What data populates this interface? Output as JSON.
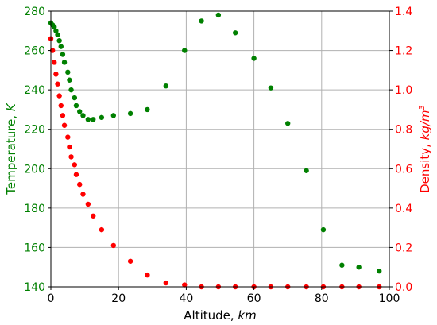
{
  "chart_data": {
    "type": "scatter",
    "xlabel": "Altitude, ",
    "xlabel_unit": "km",
    "ylabel_left": "Temperature, ",
    "ylabel_left_unit": "K",
    "ylabel_right": "Density, ",
    "ylabel_right_unit": "kg/m",
    "ylabel_right_unit_exp": "3",
    "xlim": [
      0,
      100
    ],
    "ylim_left": [
      140,
      280
    ],
    "ylim_right": [
      0,
      1.4
    ],
    "x_ticks": [
      0,
      20,
      40,
      60,
      80,
      100
    ],
    "y_left_ticks": [
      140,
      160,
      180,
      200,
      220,
      240,
      260,
      280
    ],
    "y_right_ticks": [
      "0.0",
      "0.2",
      "0.4",
      "0.6",
      "0.8",
      "1.0",
      "1.2",
      "1.4"
    ],
    "grid": true,
    "colors": {
      "left_axis": "#008000",
      "right_axis": "#ff0000"
    },
    "series": [
      {
        "axis": "left",
        "color": "#008000",
        "x": [
          0.0,
          0.5,
          1.0,
          1.5,
          2.0,
          2.5,
          3.0,
          3.5,
          4.0,
          5.0,
          5.5,
          6.0,
          7.0,
          7.5,
          8.5,
          9.5,
          11.0,
          12.5,
          15.0,
          18.5,
          23.5,
          28.5,
          34.0,
          39.5,
          44.5,
          49.5,
          54.5,
          60.0,
          65.0,
          70.0,
          75.5,
          80.5,
          86.0,
          91.0,
          97.0
        ],
        "y": [
          274,
          273,
          272,
          270,
          268,
          265,
          262,
          258,
          254,
          249,
          245,
          240,
          236,
          232,
          229,
          227,
          225,
          225,
          226,
          227,
          228,
          230,
          242,
          260,
          275,
          278,
          269,
          256,
          241,
          223,
          199,
          169,
          151,
          150,
          148
        ]
      },
      {
        "axis": "right",
        "color": "#ff0000",
        "x": [
          0.0,
          0.5,
          1.0,
          1.5,
          2.0,
          2.5,
          3.0,
          3.5,
          4.0,
          5.0,
          5.5,
          6.0,
          7.0,
          7.5,
          8.5,
          9.5,
          11.0,
          12.5,
          15.0,
          18.5,
          23.5,
          28.5,
          34.0,
          39.5,
          44.5,
          49.5,
          54.5,
          60.0,
          65.0,
          70.0,
          75.5,
          80.5,
          86.0,
          91.0,
          97.0
        ],
        "y": [
          1.26,
          1.2,
          1.14,
          1.08,
          1.03,
          0.97,
          0.92,
          0.87,
          0.82,
          0.76,
          0.71,
          0.66,
          0.62,
          0.57,
          0.52,
          0.47,
          0.42,
          0.36,
          0.29,
          0.21,
          0.13,
          0.06,
          0.02,
          0.01,
          0.0,
          0.0,
          0.0,
          0.0,
          0.0,
          0.0,
          0.0,
          0.0,
          0.0,
          0.0,
          0.0
        ]
      }
    ]
  }
}
